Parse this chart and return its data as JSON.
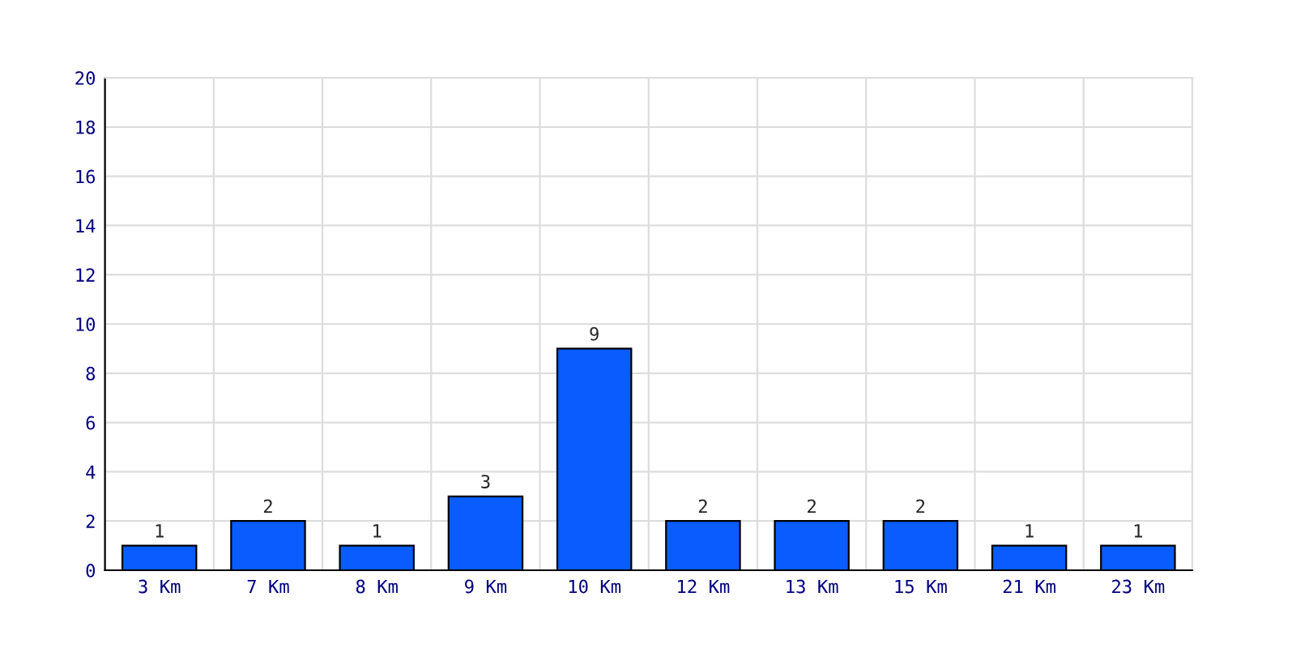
{
  "chart_data": {
    "type": "bar",
    "categories": [
      "3 Km",
      "7 Km",
      "8 Km",
      "9 Km",
      "10 Km",
      "12 Km",
      "13 Km",
      "15 Km",
      "21 Km",
      "23 Km"
    ],
    "values": [
      1,
      2,
      1,
      3,
      9,
      2,
      2,
      2,
      1,
      1
    ],
    "color": "#0a5cff",
    "ylim": [
      0,
      20
    ],
    "yticks": [
      0,
      2,
      4,
      6,
      8,
      10,
      12,
      14,
      16,
      18,
      20
    ],
    "grid": true,
    "data_labels": true
  }
}
